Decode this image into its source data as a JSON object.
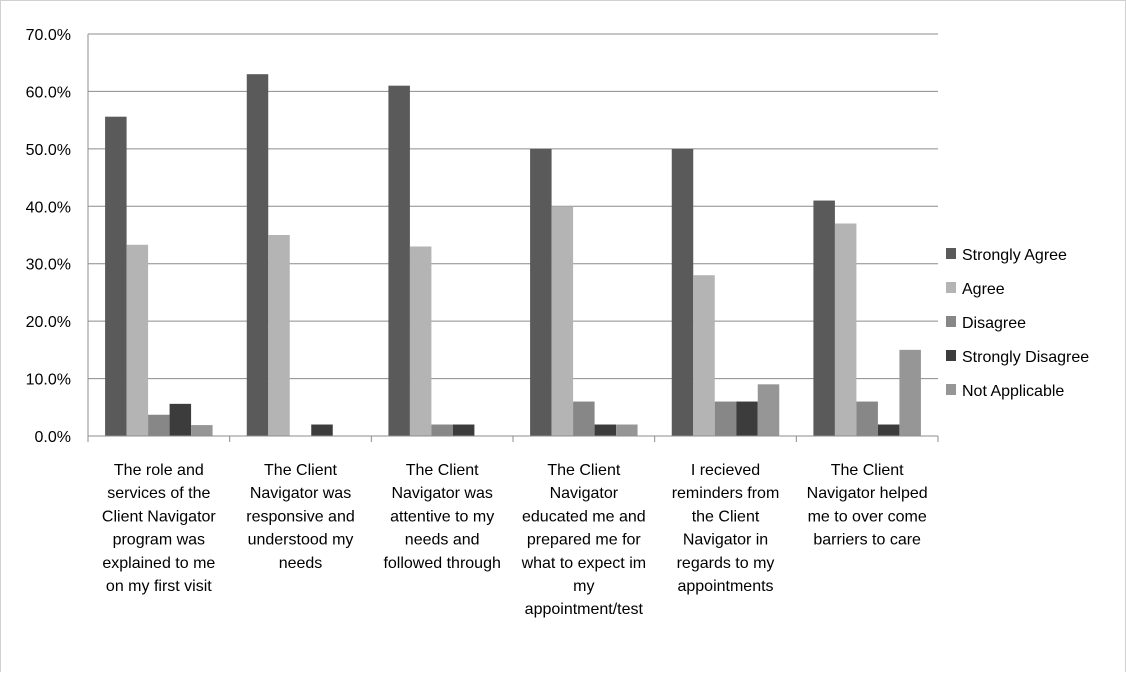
{
  "chart_data": {
    "type": "bar",
    "categories": [
      [
        "The role and",
        "services of the",
        "Client Navigator",
        "program was",
        "explained to me",
        "on my first visit"
      ],
      [
        "The Client",
        "Navigator was",
        "responsive and",
        "understood my",
        "needs"
      ],
      [
        "The Client",
        "Navigator was",
        "attentive to my",
        "needs and",
        "followed through"
      ],
      [
        "The Client",
        "Navigator",
        "educated me and",
        "prepared me for",
        "what to expect im",
        "my",
        "appointment/test"
      ],
      [
        "I recieved",
        "reminders from",
        "the Client",
        "Navigator in",
        "regards to my",
        "appointments"
      ],
      [
        "The Client",
        "Navigator helped",
        "me to over come",
        "barriers to care"
      ]
    ],
    "series": [
      {
        "name": "Strongly Agree",
        "color": "#5a5a5a",
        "values": [
          55.6,
          63.0,
          61.0,
          50.0,
          50.0,
          41.0
        ]
      },
      {
        "name": "Agree",
        "color": "#b4b4b4",
        "values": [
          33.3,
          35.0,
          33.0,
          40.0,
          28.0,
          37.0
        ]
      },
      {
        "name": "Disagree",
        "color": "#878787",
        "values": [
          3.7,
          0.0,
          2.0,
          6.0,
          6.0,
          6.0
        ]
      },
      {
        "name": "Strongly Disagree",
        "color": "#3c3c3c",
        "values": [
          5.6,
          2.0,
          2.0,
          2.0,
          6.0,
          2.0
        ]
      },
      {
        "name": "Not Applicable",
        "color": "#969696",
        "values": [
          1.9,
          0.0,
          0.0,
          2.0,
          9.0,
          15.0
        ]
      }
    ],
    "y_ticks": [
      "0.0%",
      "10.0%",
      "20.0%",
      "30.0%",
      "40.0%",
      "50.0%",
      "60.0%",
      "70.0%"
    ],
    "ylim": [
      0,
      70
    ],
    "grid": true,
    "legend_position": "right"
  }
}
